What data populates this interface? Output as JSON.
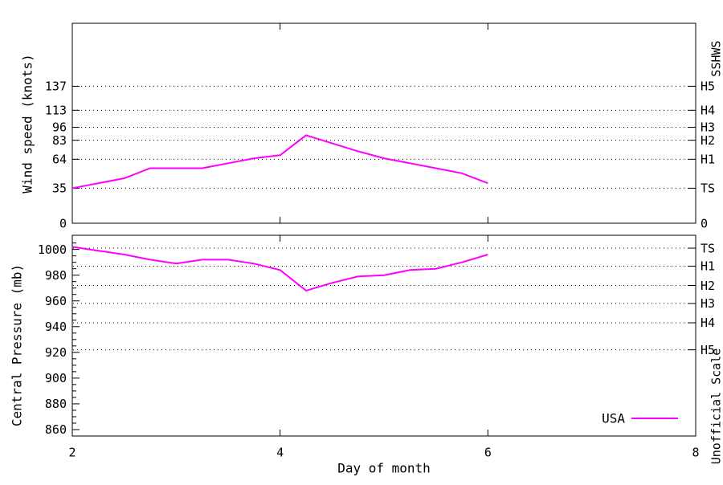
{
  "figure": {
    "background": "#ffffff",
    "series_color": "#ff00ff",
    "axis_color": "#000000",
    "legend": {
      "label": "USA"
    },
    "x_axis": {
      "label": "Day of month",
      "range": [
        2,
        8
      ],
      "ticks": [
        "2",
        "4",
        "6",
        "8"
      ],
      "tick_values": [
        2,
        4,
        6,
        8
      ]
    }
  },
  "chart_data": [
    {
      "type": "line",
      "panel": "wind",
      "ylabel": "Wind speed (knots)",
      "right_axis_label": "SSHWS",
      "ylim": [
        0,
        200
      ],
      "xlim": [
        2,
        8
      ],
      "grid": true,
      "legend_position": "none",
      "yticks": [
        {
          "value": 0,
          "label": "0"
        },
        {
          "value": 35,
          "label": "35"
        },
        {
          "value": 64,
          "label": "64"
        },
        {
          "value": 83,
          "label": "83"
        },
        {
          "value": 96,
          "label": "96"
        },
        {
          "value": 113,
          "label": "113"
        },
        {
          "value": 137,
          "label": "137"
        }
      ],
      "right_ticks": [
        {
          "value": 137,
          "label": "H5"
        },
        {
          "value": 113,
          "label": "H4"
        },
        {
          "value": 96,
          "label": "H3"
        },
        {
          "value": 83,
          "label": "H2"
        },
        {
          "value": 64,
          "label": "H1"
        },
        {
          "value": 35,
          "label": "TS"
        },
        {
          "value": 0,
          "label": "0"
        }
      ],
      "gridline_values": [
        35,
        64,
        83,
        96,
        113,
        137
      ],
      "x": [
        2,
        2.25,
        2.5,
        2.75,
        3,
        3.25,
        3.5,
        3.75,
        4,
        4.25,
        4.5,
        4.75,
        5,
        5.25,
        5.5,
        5.75,
        6
      ],
      "series": [
        {
          "name": "USA",
          "values": [
            35,
            40,
            45,
            55,
            55,
            55,
            60,
            65,
            68,
            88,
            80,
            72,
            65,
            60,
            55,
            50,
            40
          ]
        }
      ]
    },
    {
      "type": "line",
      "panel": "pressure",
      "ylabel": "Central Pressure (mb)",
      "right_axis_label": "Unofficial Scale",
      "xlabel": "Day of month",
      "ylim": [
        855,
        1011
      ],
      "xlim": [
        2,
        8
      ],
      "grid": true,
      "legend_position": "bottom-right",
      "yticks": [
        {
          "value": 1000,
          "label": "1000"
        },
        {
          "value": 980,
          "label": "980"
        },
        {
          "value": 960,
          "label": "960"
        },
        {
          "value": 940,
          "label": "940"
        },
        {
          "value": 920,
          "label": "920"
        },
        {
          "value": 900,
          "label": "900"
        },
        {
          "value": 880,
          "label": "880"
        },
        {
          "value": 860,
          "label": "860"
        }
      ],
      "minor_tick_step": 5,
      "right_ticks": [
        {
          "value": 1001,
          "label": "TS"
        },
        {
          "value": 987,
          "label": "H1"
        },
        {
          "value": 972,
          "label": "H2"
        },
        {
          "value": 958,
          "label": "H3"
        },
        {
          "value": 943,
          "label": "H4"
        },
        {
          "value": 922,
          "label": "H5"
        }
      ],
      "gridline_values": [
        1001,
        987,
        972,
        958,
        943,
        922
      ],
      "x": [
        2,
        2.25,
        2.5,
        2.75,
        3,
        3.25,
        3.5,
        3.75,
        4,
        4.25,
        4.5,
        4.75,
        5,
        5.25,
        5.5,
        5.75,
        6
      ],
      "series": [
        {
          "name": "USA",
          "values": [
            1002,
            999,
            996,
            992,
            989,
            992,
            992,
            989,
            984,
            968,
            974,
            979,
            980,
            984,
            985,
            990,
            996
          ]
        }
      ]
    }
  ]
}
